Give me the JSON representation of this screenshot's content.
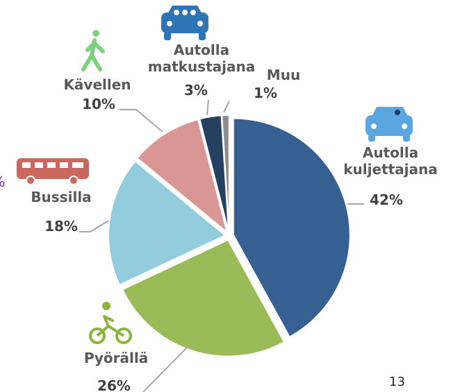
{
  "chart_data": {
    "type": "pie",
    "categories": [
      "Autolla kuljettajana",
      "Pyörällä",
      "Bussilla",
      "Kävellen",
      "Autolla matkustajana",
      "Muu"
    ],
    "values": [
      42,
      26,
      18,
      10,
      3,
      1
    ],
    "value_labels": [
      "42%",
      "26%",
      "18%",
      "10%",
      "3%",
      "1%"
    ],
    "colors": [
      "#376092",
      "#9bbb59",
      "#93cddd",
      "#d99694",
      "#254061",
      "#8c8c8c"
    ]
  },
  "cut_off_text": "%",
  "page_number": "13"
}
